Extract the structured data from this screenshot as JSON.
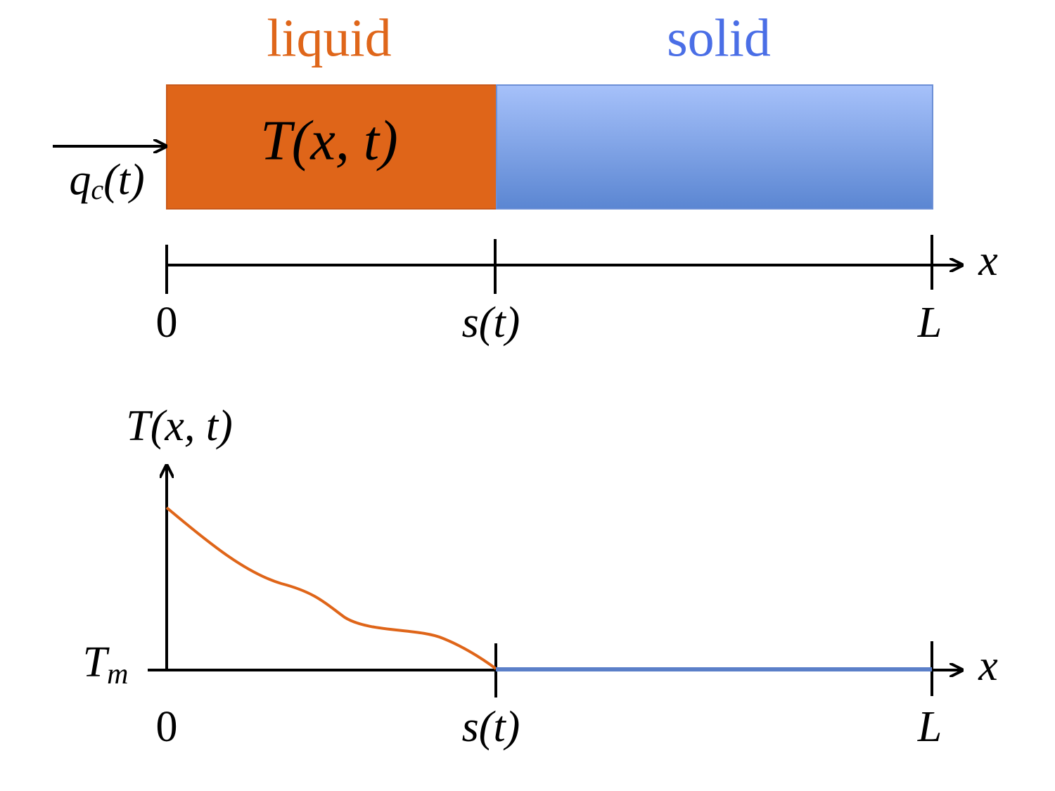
{
  "header": {
    "liquid": "liquid",
    "solid": "solid"
  },
  "bar": {
    "label": "T(x, t)",
    "flux": {
      "base": "q",
      "sub": "c",
      "rest": "(t)"
    }
  },
  "top_axis": {
    "ticks": [
      "0",
      "s(t)",
      "L"
    ],
    "label": "x"
  },
  "plot": {
    "y_label": "T(x, t)",
    "y_tick": {
      "base": "T",
      "sub": "m"
    },
    "ticks": [
      "0",
      "s(t)",
      "L"
    ],
    "x_label": "x"
  }
}
